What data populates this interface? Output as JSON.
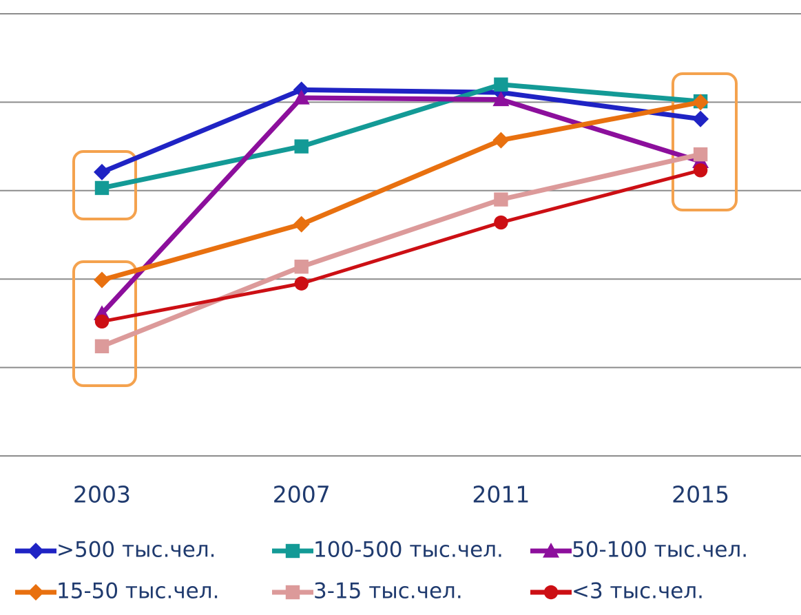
{
  "chart_data": {
    "type": "line",
    "categories": [
      "2003",
      "2007",
      "2011",
      "2015"
    ],
    "ylim": [
      0,
      5
    ],
    "yticks": [
      0,
      1,
      2,
      3,
      4,
      5
    ],
    "grid": true,
    "legend": "bottom",
    "series": [
      {
        "name": ">500 тыс.чел.",
        "color": "#1f23c4",
        "marker": "diamond",
        "values": [
          3.21,
          4.14,
          4.11,
          3.81
        ]
      },
      {
        "name": "100-500 тыс.чел.",
        "color": "#139a96",
        "marker": "square",
        "values": [
          3.03,
          3.5,
          4.2,
          4.01
        ]
      },
      {
        "name": "50-100 тыс.чел.",
        "color": "#8c0f9c",
        "marker": "triangle",
        "values": [
          1.61,
          4.05,
          4.03,
          3.33
        ]
      },
      {
        "name": "15-50 тыс.чел.",
        "color": "#e8700f",
        "marker": "diamond",
        "values": [
          1.99,
          2.62,
          3.57,
          4.0
        ]
      },
      {
        "name": "3-15 тыс.чел.",
        "color": "#dc9a9a",
        "marker": "square",
        "values": [
          1.24,
          2.14,
          2.9,
          3.41
        ]
      },
      {
        "name": "<3 тыс.чел.",
        "color": "#cc0f14",
        "marker": "circle",
        "values": [
          1.52,
          1.95,
          2.64,
          3.23
        ]
      }
    ]
  }
}
